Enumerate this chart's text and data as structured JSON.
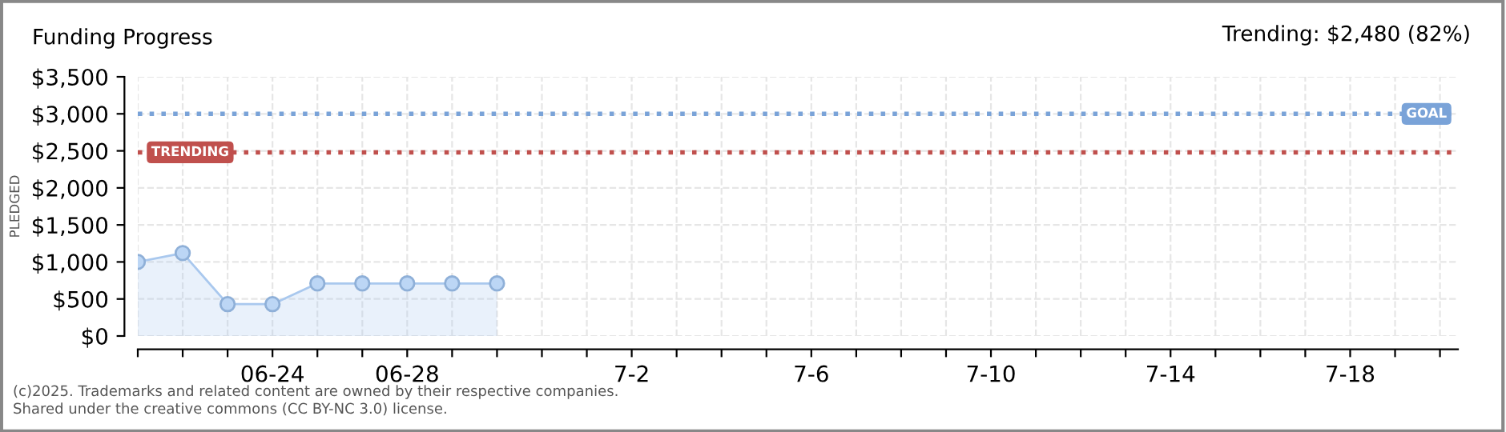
{
  "chart_data": {
    "type": "area",
    "title": "Funding Progress",
    "subtitle": "Trending: $2,480 (82%)",
    "ylabel": "PLEDGED",
    "categories": [
      null,
      null,
      null,
      "06-24",
      null,
      null,
      "06-28",
      null,
      null,
      null,
      null,
      "7-2",
      null,
      null,
      null,
      "7-6",
      null,
      null,
      null,
      "7-10",
      null,
      null,
      null,
      "7-14",
      null,
      null,
      null,
      "7-18",
      null,
      null
    ],
    "series": [
      {
        "color": "#a9c8ee",
        "values": [
          1000,
          1120,
          430,
          430,
          710,
          710,
          710,
          710,
          710,
          null,
          null,
          null,
          null,
          null,
          null,
          null,
          null,
          null,
          null,
          null,
          null,
          null,
          null,
          null,
          null,
          null,
          null,
          null,
          null,
          null
        ]
      }
    ],
    "ylim": [
      0,
      3500
    ],
    "yticks": [
      {
        "value": 0,
        "label": "$0"
      },
      {
        "value": 500,
        "label": "$500"
      },
      {
        "value": 1000,
        "label": "$1,000"
      },
      {
        "value": 1500,
        "label": "$1,500"
      },
      {
        "value": 2000,
        "label": "$2,000"
      },
      {
        "value": 2500,
        "label": "$2,500"
      },
      {
        "value": 3000,
        "label": "$3,000"
      },
      {
        "value": 3500,
        "label": "$3,500"
      }
    ],
    "ref_lines": [
      {
        "axis": "y",
        "value": 3000,
        "label": "GOAL",
        "color": "#7aa3d8",
        "line_style": "dotted"
      },
      {
        "axis": "y",
        "value": 2480,
        "label": "TRENDING",
        "color": "#c0504d",
        "line_style": "dotted"
      }
    ],
    "grid": true,
    "marker": "circle",
    "annotations": [
      "(c)2025. Trademarks and related content are owned by their respective companies.",
      "Shared under the creative commons (CC BY-NC 3.0) license."
    ]
  }
}
